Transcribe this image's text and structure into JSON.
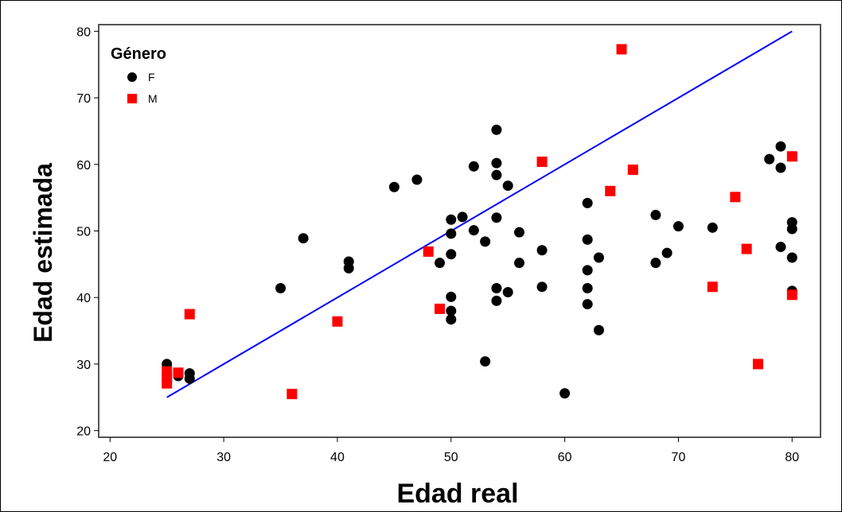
{
  "chart_data": {
    "type": "scatter",
    "title": "",
    "xlabel": "Edad real",
    "ylabel": "Edad estimada",
    "xlim": [
      19,
      82.5
    ],
    "ylim": [
      19,
      81
    ],
    "xticks": [
      20,
      30,
      40,
      50,
      60,
      70,
      80
    ],
    "yticks": [
      20,
      30,
      40,
      50,
      60,
      70,
      80
    ],
    "grid": false,
    "legend": {
      "title": "Género",
      "placement": "top-left",
      "entries": [
        {
          "label": "F",
          "color": "#000000",
          "marker": "circle"
        },
        {
          "label": "M",
          "color": "#ff0000",
          "marker": "square"
        }
      ]
    },
    "reference_line": {
      "x": [
        25,
        80
      ],
      "y": [
        25,
        80
      ],
      "color": "#0000ff"
    },
    "series": [
      {
        "name": "F",
        "color": "#000000",
        "marker": "circle",
        "points": [
          [
            25,
            30.0
          ],
          [
            26,
            28.2
          ],
          [
            27,
            28.6
          ],
          [
            27,
            27.8
          ],
          [
            35,
            41.4
          ],
          [
            37,
            48.9
          ],
          [
            41,
            45.4
          ],
          [
            41,
            44.4
          ],
          [
            45,
            56.6
          ],
          [
            47,
            57.7
          ],
          [
            49,
            45.2
          ],
          [
            50,
            51.7
          ],
          [
            50,
            49.6
          ],
          [
            50,
            46.5
          ],
          [
            50,
            40.1
          ],
          [
            50,
            38.0
          ],
          [
            50,
            36.7
          ],
          [
            51,
            52.1
          ],
          [
            52,
            59.7
          ],
          [
            52,
            50.1
          ],
          [
            53,
            48.4
          ],
          [
            53,
            30.4
          ],
          [
            54,
            65.2
          ],
          [
            54,
            60.2
          ],
          [
            54,
            58.4
          ],
          [
            54,
            52.0
          ],
          [
            54,
            41.4
          ],
          [
            54,
            39.5
          ],
          [
            55,
            56.8
          ],
          [
            55,
            40.8
          ],
          [
            56,
            49.8
          ],
          [
            56,
            45.2
          ],
          [
            58,
            47.1
          ],
          [
            58,
            41.6
          ],
          [
            60,
            25.6
          ],
          [
            62,
            54.2
          ],
          [
            62,
            48.7
          ],
          [
            62,
            44.1
          ],
          [
            62,
            41.4
          ],
          [
            62,
            39.0
          ],
          [
            63,
            46.0
          ],
          [
            63,
            35.1
          ],
          [
            68,
            52.4
          ],
          [
            68,
            45.2
          ],
          [
            69,
            46.7
          ],
          [
            70,
            50.7
          ],
          [
            73,
            50.5
          ],
          [
            78,
            60.8
          ],
          [
            79,
            62.7
          ],
          [
            79,
            59.5
          ],
          [
            79,
            47.6
          ],
          [
            80,
            51.3
          ],
          [
            80,
            50.3
          ],
          [
            80,
            46.0
          ],
          [
            80,
            41.0
          ]
        ]
      },
      {
        "name": "M",
        "color": "#ff0000",
        "marker": "square",
        "points": [
          [
            25,
            28.9
          ],
          [
            25,
            28.0
          ],
          [
            25,
            27.1
          ],
          [
            26,
            28.7
          ],
          [
            27,
            37.5
          ],
          [
            36,
            25.5
          ],
          [
            40,
            36.4
          ],
          [
            48,
            46.9
          ],
          [
            49,
            38.3
          ],
          [
            58,
            60.4
          ],
          [
            64,
            56.0
          ],
          [
            65,
            77.3
          ],
          [
            66,
            59.2
          ],
          [
            73,
            41.6
          ],
          [
            75,
            55.1
          ],
          [
            76,
            47.3
          ],
          [
            77,
            30.0
          ],
          [
            80,
            61.2
          ],
          [
            80,
            40.4
          ]
        ]
      }
    ]
  }
}
